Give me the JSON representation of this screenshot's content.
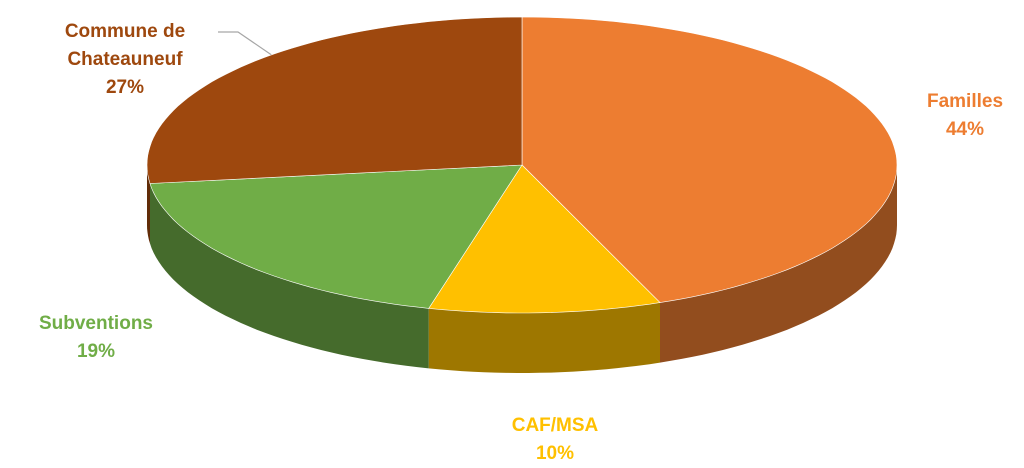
{
  "chart_data": {
    "type": "pie",
    "categories": [
      "Familles",
      "CAF/MSA",
      "Subventions",
      "Commune de Chateauneuf"
    ],
    "values": [
      44,
      10,
      19,
      27
    ],
    "value_labels": [
      "44%",
      "10%",
      "19%",
      "27%"
    ],
    "colors": [
      "#ED7D31",
      "#FFC000",
      "#70AD47",
      "#9E480E"
    ]
  }
}
